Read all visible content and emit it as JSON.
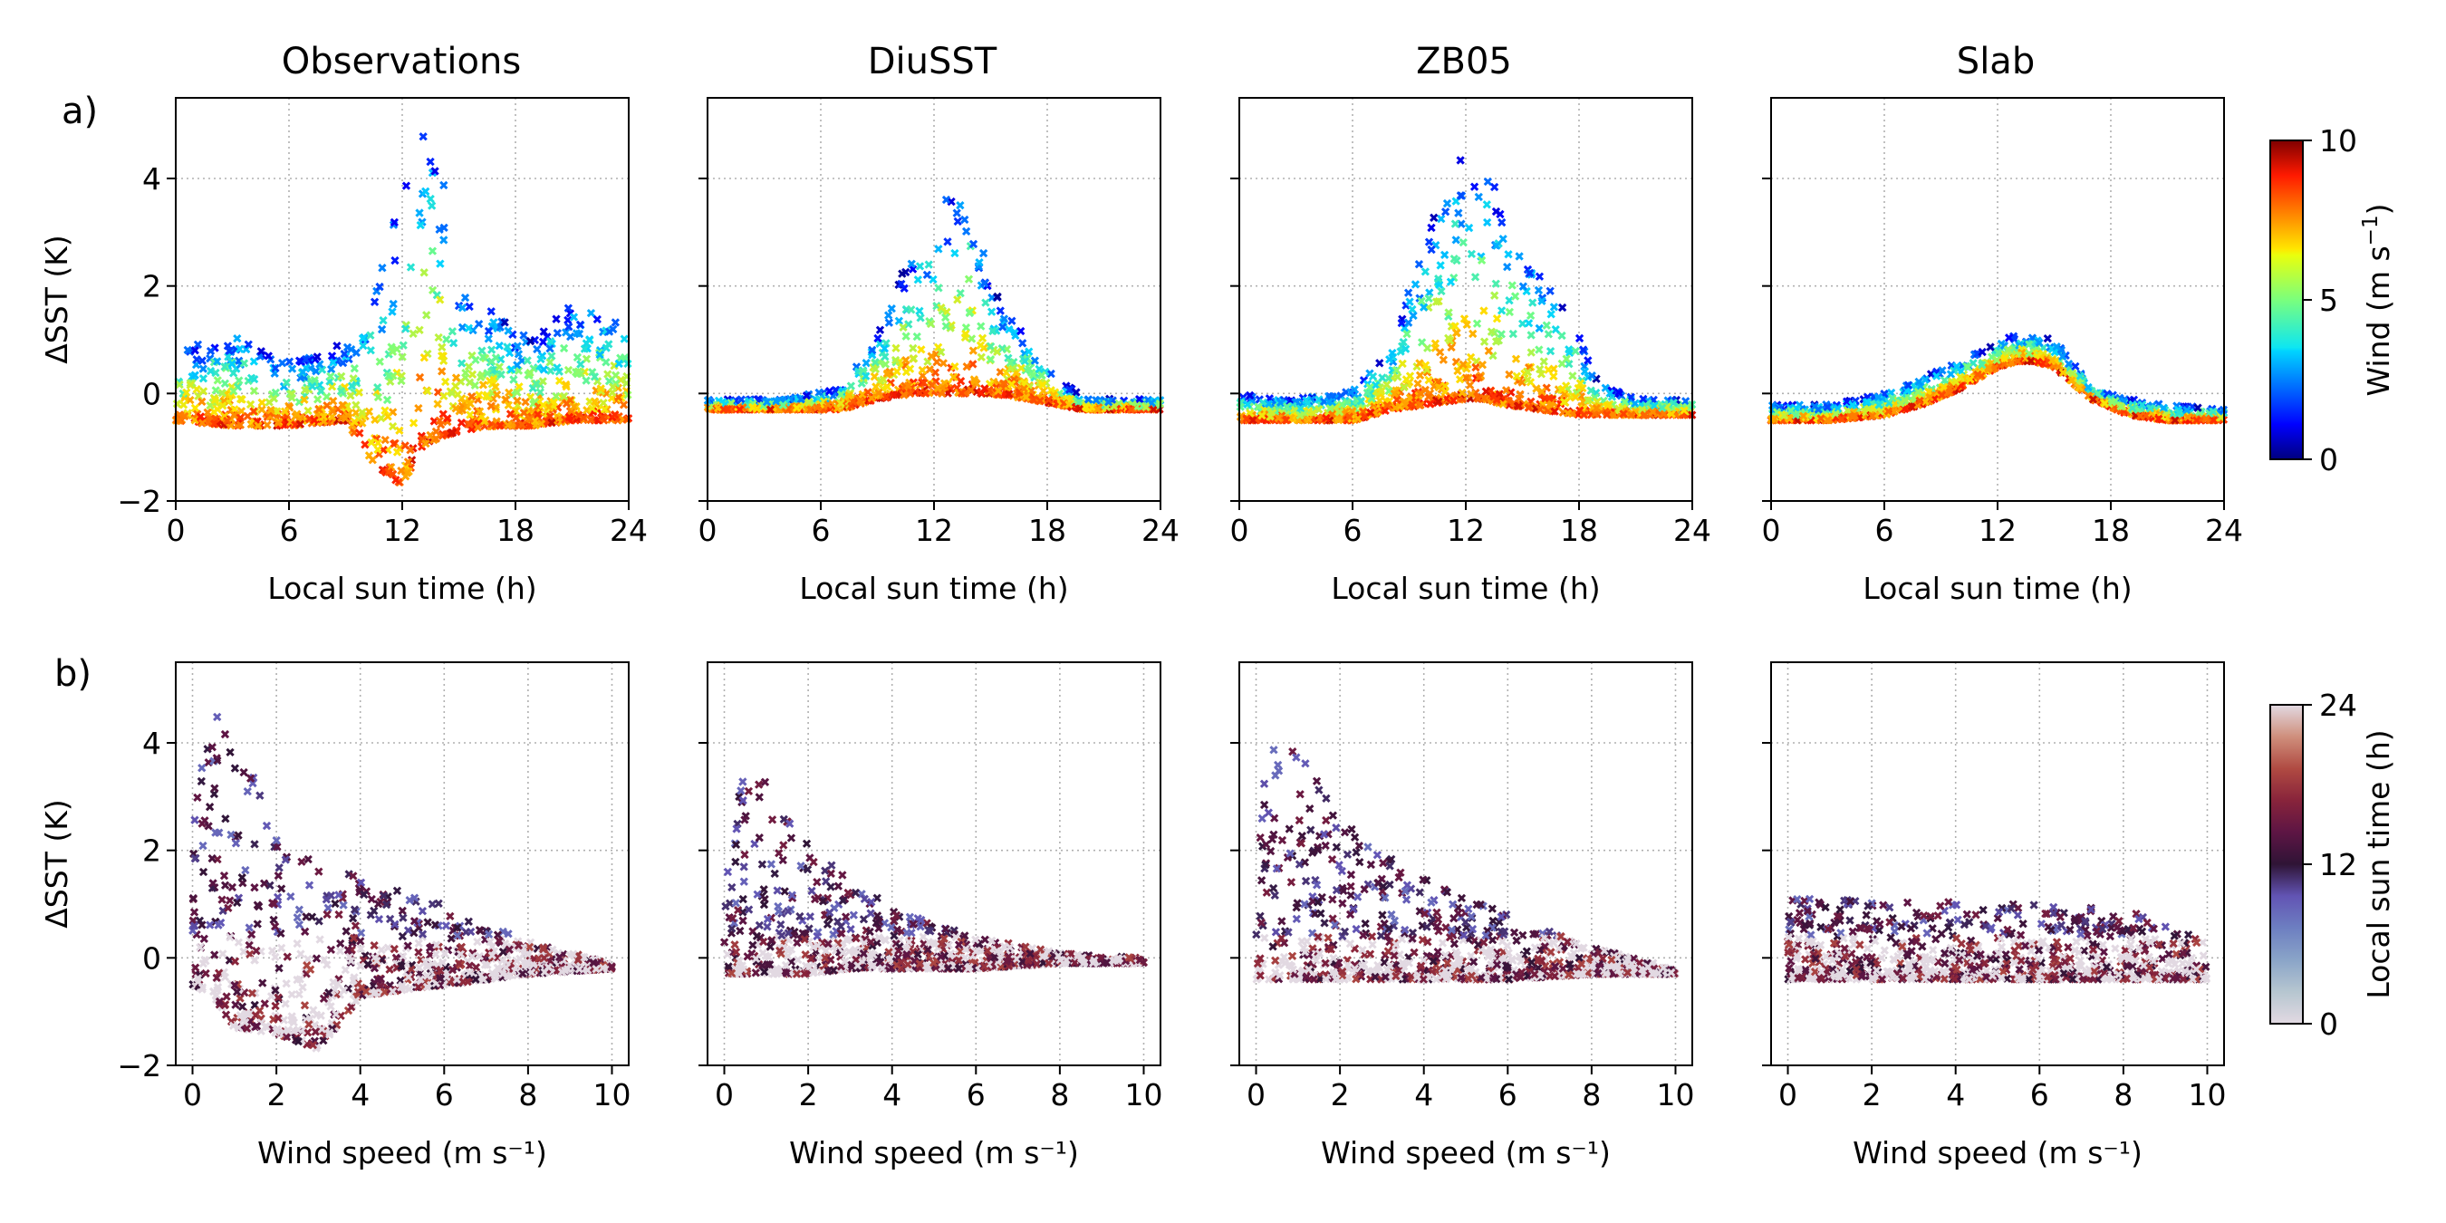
{
  "figure": {
    "row_labels": [
      "a)",
      "b)"
    ],
    "panel_titles": [
      "Observations",
      "DiuSST",
      "ZB05",
      "Slab"
    ],
    "colorbar_top": {
      "label": "Wind (m s⁻¹)",
      "label_base": "Wind (m s",
      "label_exp": "−1",
      "label_close": ")",
      "ticks": [
        0,
        5,
        10
      ],
      "colormap": "jet"
    },
    "colorbar_bottom": {
      "label": "Local sun time (h)",
      "ticks": [
        0,
        12,
        24
      ],
      "colormap": "twilight-half"
    }
  },
  "chart_data": [
    {
      "type": "scatter",
      "panel": "a)",
      "title": "Observations",
      "xlabel": "Local sun time (h)",
      "ylabel": "ΔSST (K)",
      "xlim": [
        0,
        24
      ],
      "ylim": [
        -2,
        5.5
      ],
      "xticks": [
        0,
        6,
        12,
        18,
        24
      ],
      "yticks": [
        -2,
        0,
        2,
        4
      ],
      "grid": true,
      "marker": "x",
      "color_by": "Wind (m s⁻¹)",
      "envelope": {
        "x": [
          0,
          3,
          6,
          9,
          10.5,
          12,
          13,
          14,
          15,
          17,
          19,
          21,
          24
        ],
        "upper": [
          0.8,
          1.2,
          0.6,
          1.0,
          2.0,
          3.8,
          4.9,
          4.8,
          2.2,
          1.5,
          1.0,
          1.8,
          1.4
        ],
        "lower": [
          -0.5,
          -0.6,
          -0.6,
          -0.5,
          -1.3,
          -1.7,
          -1.0,
          -0.8,
          -0.7,
          -0.6,
          -0.6,
          -0.5,
          -0.5
        ]
      }
    },
    {
      "type": "scatter",
      "panel": "a)",
      "title": "DiuSST",
      "xlabel": "Local sun time (h)",
      "ylabel": "",
      "xlim": [
        0,
        24
      ],
      "ylim": [
        -2,
        5.5
      ],
      "xticks": [
        0,
        6,
        12,
        18,
        24
      ],
      "yticks": [
        -2,
        0,
        2,
        4
      ],
      "grid": true,
      "marker": "x",
      "color_by": "Wind (m s⁻¹)",
      "envelope": {
        "x": [
          0,
          4,
          7,
          9,
          11,
          13,
          14,
          15,
          17,
          18.5,
          20,
          24
        ],
        "upper": [
          -0.1,
          -0.1,
          0.1,
          1.2,
          2.8,
          3.8,
          3.8,
          2.0,
          1.0,
          0.3,
          -0.1,
          -0.1
        ],
        "lower": [
          -0.3,
          -0.3,
          -0.3,
          -0.1,
          0.0,
          0.0,
          0.0,
          0.0,
          -0.1,
          -0.2,
          -0.3,
          -0.3
        ]
      }
    },
    {
      "type": "scatter",
      "panel": "a)",
      "title": "ZB05",
      "xlabel": "Local sun time (h)",
      "ylabel": "",
      "xlim": [
        0,
        24
      ],
      "ylim": [
        -2,
        5.5
      ],
      "xticks": [
        0,
        6,
        12,
        18,
        24
      ],
      "yticks": [
        -2,
        0,
        2,
        4
      ],
      "grid": true,
      "marker": "x",
      "color_by": "Wind (m s⁻¹)",
      "envelope": {
        "x": [
          0,
          3,
          6,
          8,
          10,
          12,
          13,
          14,
          16,
          18,
          19,
          21,
          24
        ],
        "upper": [
          0.0,
          -0.1,
          0.1,
          0.8,
          3.2,
          4.8,
          4.3,
          3.5,
          2.2,
          1.2,
          0.2,
          -0.1,
          -0.1
        ],
        "lower": [
          -0.5,
          -0.5,
          -0.5,
          -0.3,
          -0.2,
          -0.1,
          -0.1,
          -0.2,
          -0.3,
          -0.4,
          -0.4,
          -0.4,
          -0.4
        ]
      }
    },
    {
      "type": "scatter",
      "panel": "a)",
      "title": "Slab",
      "xlabel": "Local sun time (h)",
      "ylabel": "",
      "xlim": [
        0,
        24
      ],
      "ylim": [
        -2,
        5.5
      ],
      "xticks": [
        0,
        6,
        12,
        18,
        24
      ],
      "yticks": [
        -2,
        0,
        2,
        4
      ],
      "grid": true,
      "marker": "x",
      "color_by": "Wind (m s⁻¹)",
      "envelope": {
        "x": [
          0,
          3,
          6,
          8,
          10,
          12,
          13,
          14,
          15,
          16,
          17,
          19,
          21,
          24
        ],
        "upper": [
          -0.2,
          -0.2,
          0.0,
          0.3,
          0.6,
          0.95,
          1.1,
          1.1,
          1.0,
          0.6,
          0.1,
          -0.1,
          -0.2,
          -0.3
        ],
        "lower": [
          -0.5,
          -0.5,
          -0.4,
          -0.2,
          0.1,
          0.5,
          0.6,
          0.6,
          0.5,
          0.2,
          -0.1,
          -0.4,
          -0.5,
          -0.5
        ]
      }
    },
    {
      "type": "scatter",
      "panel": "b)",
      "title": "",
      "xlabel": "Wind speed (m s⁻¹)",
      "ylabel": "ΔSST (K)",
      "xlim": [
        -0.4,
        10.4
      ],
      "ylim": [
        -2,
        5.5
      ],
      "xticks": [
        0,
        2,
        4,
        6,
        8,
        10
      ],
      "yticks": [
        -2,
        0,
        2,
        4
      ],
      "grid": true,
      "marker": "x",
      "color_by": "Local sun time (h)",
      "envelope": {
        "x": [
          0,
          0.5,
          1,
          2,
          3,
          4,
          6,
          8,
          10
        ],
        "upper": [
          2.5,
          4.9,
          4.3,
          2.4,
          1.8,
          1.5,
          1.0,
          0.3,
          -0.1
        ],
        "lower": [
          -0.5,
          -0.7,
          -1.3,
          -1.4,
          -1.7,
          -0.7,
          -0.5,
          -0.3,
          -0.2
        ]
      }
    },
    {
      "type": "scatter",
      "panel": "b)",
      "title": "",
      "xlabel": "Wind speed (m s⁻¹)",
      "ylabel": "",
      "xlim": [
        -0.4,
        10.4
      ],
      "ylim": [
        -2,
        5.5
      ],
      "xticks": [
        0,
        2,
        4,
        6,
        8,
        10
      ],
      "yticks": [
        -2,
        0,
        2,
        4
      ],
      "grid": true,
      "marker": "x",
      "color_by": "Local sun time (h)",
      "envelope": {
        "x": [
          0,
          0.5,
          1,
          2,
          3,
          4,
          6,
          8,
          10
        ],
        "upper": [
          1.5,
          3.8,
          3.5,
          2.1,
          1.5,
          0.9,
          0.4,
          0.1,
          0.0
        ],
        "lower": [
          -0.3,
          -0.3,
          -0.3,
          -0.3,
          -0.2,
          -0.2,
          -0.2,
          -0.1,
          -0.1
        ]
      }
    },
    {
      "type": "scatter",
      "panel": "b)",
      "title": "",
      "xlabel": "Wind speed (m s⁻¹)",
      "ylabel": "",
      "xlim": [
        -0.4,
        10.4
      ],
      "ylim": [
        -2,
        5.5
      ],
      "xticks": [
        0,
        2,
        4,
        6,
        8,
        10
      ],
      "yticks": [
        -2,
        0,
        2,
        4
      ],
      "grid": true,
      "marker": "x",
      "color_by": "Local sun time (h)",
      "envelope": {
        "x": [
          0,
          0.3,
          1,
          2,
          3,
          4,
          6,
          8,
          10
        ],
        "upper": [
          2.0,
          4.8,
          3.8,
          2.8,
          2.0,
          1.5,
          0.8,
          0.2,
          -0.2
        ],
        "lower": [
          -0.4,
          -0.4,
          -0.4,
          -0.4,
          -0.4,
          -0.4,
          -0.4,
          -0.3,
          -0.3
        ]
      }
    },
    {
      "type": "scatter",
      "panel": "b)",
      "title": "",
      "xlabel": "Wind speed (m s⁻¹)",
      "ylabel": "",
      "xlim": [
        -0.4,
        10.4
      ],
      "ylim": [
        -2,
        5.5
      ],
      "xticks": [
        0,
        2,
        4,
        6,
        8,
        10
      ],
      "yticks": [
        -2,
        0,
        2,
        4
      ],
      "grid": true,
      "marker": "x",
      "color_by": "Local sun time (h)",
      "envelope": {
        "x": [
          0,
          2,
          4,
          6,
          8,
          10
        ],
        "upper": [
          1.1,
          1.1,
          1.05,
          1.0,
          0.9,
          0.4
        ],
        "lower": [
          -0.4,
          -0.4,
          -0.4,
          -0.4,
          -0.4,
          -0.4
        ]
      }
    }
  ]
}
